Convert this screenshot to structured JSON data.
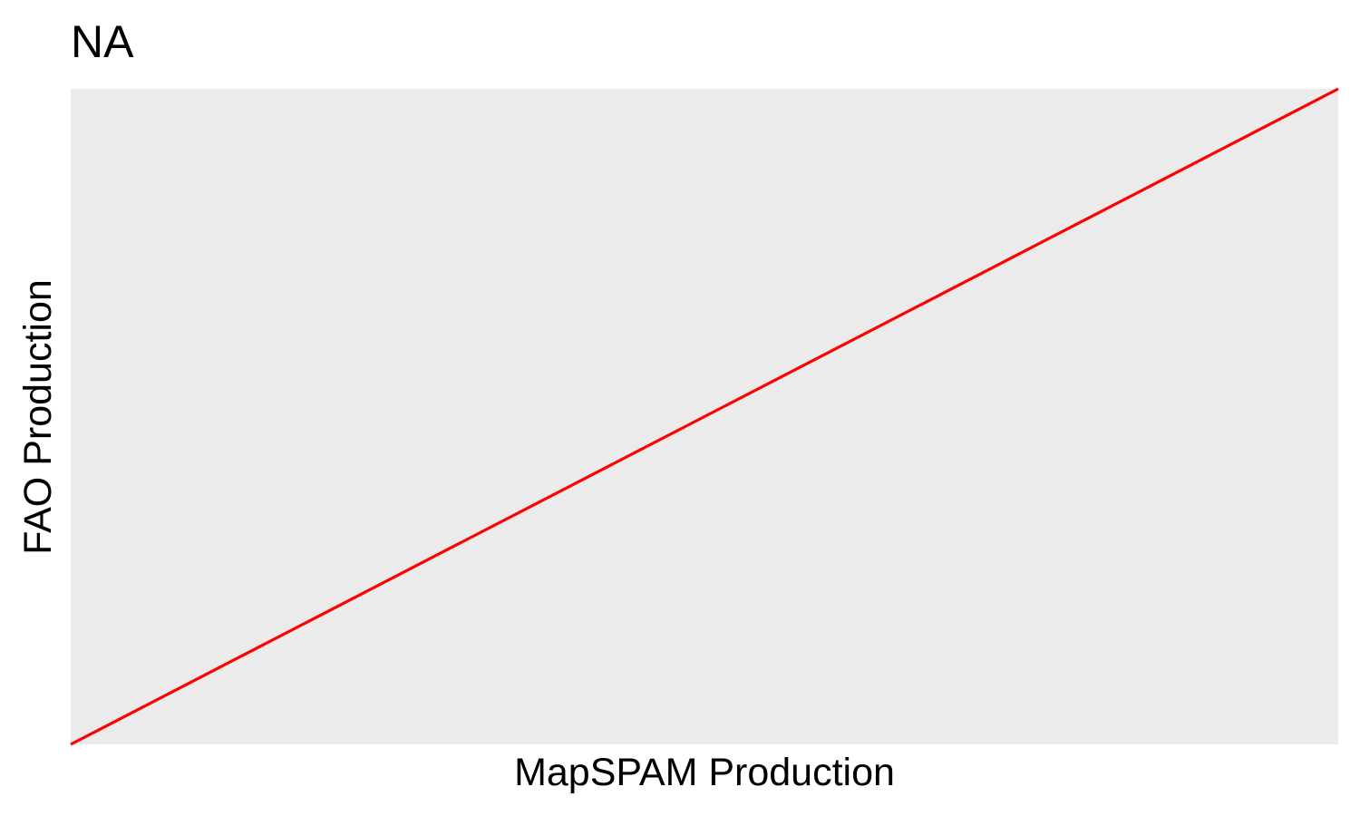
{
  "chart_data": {
    "type": "line",
    "title": "NA",
    "xlabel": "MapSPAM Production",
    "ylabel": "FAO Production",
    "grid": false,
    "legend": "none",
    "x_ticks_shown": false,
    "y_ticks_shown": false,
    "xlim": [
      0,
      1
    ],
    "ylim": [
      0,
      1
    ],
    "series": [
      {
        "line_type": "reference-1-to-1",
        "color": "#ff0000",
        "x": [
          0,
          1
        ],
        "y": [
          0,
          1
        ]
      }
    ],
    "panel_background": "#ebebeb"
  }
}
